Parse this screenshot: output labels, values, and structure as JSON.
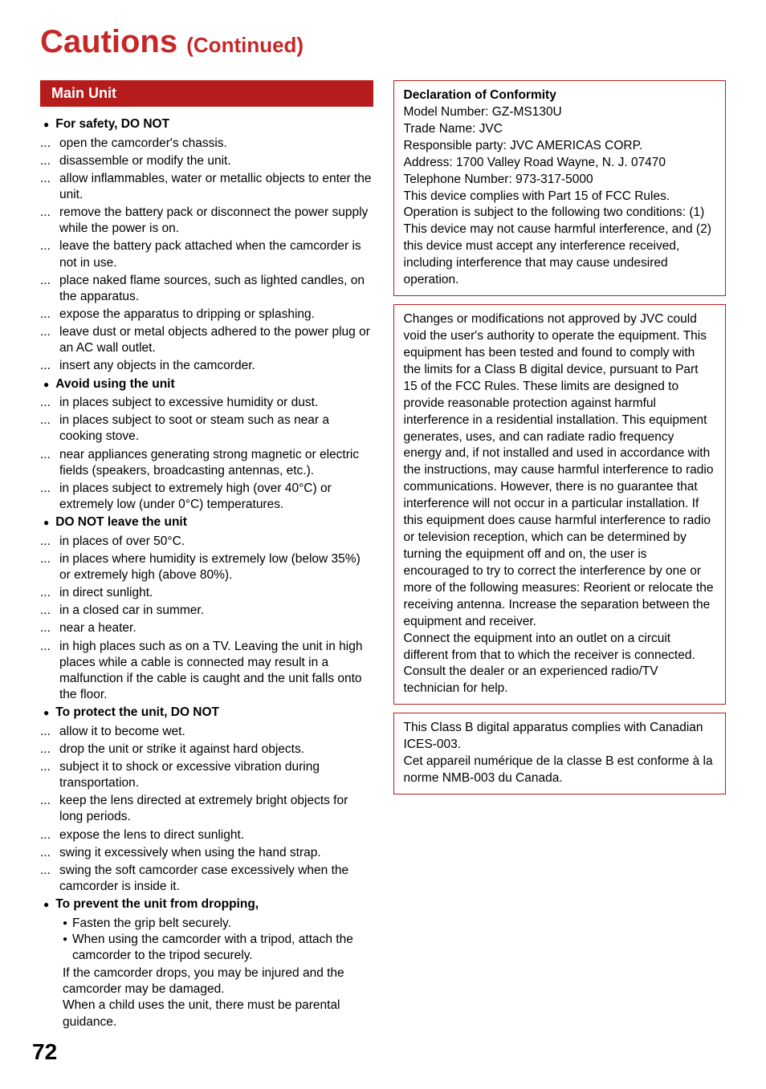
{
  "page": {
    "title": "Cautions",
    "continued": "(Continued)",
    "number": "72"
  },
  "left": {
    "header": "Main Unit",
    "sections": [
      {
        "heading": "For safety, DO NOT",
        "items": [
          "open the camcorder's chassis.",
          "disassemble or modify the unit.",
          "allow inflammables, water or metallic objects to enter the unit.",
          "remove the battery pack or disconnect the power supply while the power is on.",
          "leave the battery pack attached when the camcorder is not in use.",
          "place naked flame sources, such as lighted candles, on the apparatus.",
          "expose the apparatus to dripping or splashing.",
          "leave dust or metal objects adhered to the power plug or an AC wall outlet.",
          "insert any objects in the camcorder."
        ]
      },
      {
        "heading": "Avoid using the unit",
        "items": [
          "in places subject to excessive humidity or dust.",
          "in places subject to soot or steam such as near a cooking stove.",
          "near appliances generating strong magnetic or electric fields (speakers, broadcasting antennas, etc.).",
          "in places subject to extremely high (over 40°C) or extremely low (under 0°C) temperatures."
        ]
      },
      {
        "heading": "DO NOT leave the unit",
        "items": [
          "in places of over 50°C.",
          "in places where humidity is extremely low (below 35%) or extremely high (above 80%).",
          "in direct sunlight.",
          "in a closed car in summer.",
          "near a heater.",
          "in high places such as on a TV. Leaving the unit in high places while a cable is connected may result in a malfunction if the cable is caught and the unit falls onto the floor."
        ]
      },
      {
        "heading": "To protect the unit, DO NOT",
        "items": [
          "allow it to become wet.",
          "drop the unit or strike it against hard objects.",
          "subject it to shock or excessive vibration during transportation.",
          "keep the lens directed at extremely bright objects for long periods.",
          "expose the lens to direct sunlight.",
          "swing it excessively when using the hand strap.",
          "swing the soft camcorder case excessively when the camcorder is inside it."
        ]
      },
      {
        "heading": "To prevent the unit from dropping,",
        "subbullets": [
          "Fasten the grip belt securely.",
          "When using the camcorder with a tripod, attach the camcorder to the tripod securely."
        ],
        "tail": "If the camcorder drops, you may be injured and the camcorder may be damaged.\nWhen a child uses the unit, there must be parental guidance."
      }
    ]
  },
  "right": {
    "box1": {
      "title": "Declaration of Conformity",
      "lines": [
        "Model Number: GZ-MS130U",
        "Trade Name: JVC",
        "Responsible party: JVC AMERICAS CORP.",
        "Address: 1700 Valley Road Wayne, N. J. 07470",
        "Telephone Number: 973-317-5000",
        "This device complies with Part 15 of FCC Rules. Operation is subject to the following two conditions: (1) This device may not cause harmful interference, and (2) this device must accept any interference received, including interference that may cause undesired operation."
      ]
    },
    "box2": {
      "paras": [
        "Changes or modifications not approved by JVC could void the user's authority to operate the equipment. This equipment has been tested and found to comply with the limits for a Class B digital device, pursuant to Part 15 of the FCC Rules. These limits are designed to provide reasonable protection against harmful interference in a residential installation. This equipment generates, uses, and can radiate radio frequency energy and, if not installed and used in accordance with the instructions, may cause harmful interference to radio communications. However, there is no guarantee that interference will not occur in a particular installation. If this equipment does cause harmful interference to radio or television reception, which can be determined by turning the equipment off and on, the user is encouraged to try to correct the interference by one or more of the following measures: Reorient or relocate the receiving antenna. Increase the separation between the equipment and receiver.",
        "Connect the equipment into an outlet on a circuit different from that to which the receiver is connected.",
        "Consult the dealer or an experienced radio/TV technician for help."
      ]
    },
    "box3": {
      "paras": [
        "This Class B digital apparatus complies with Canadian ICES-003.",
        "Cet appareil numérique de la classe B est conforme à la norme NMB-003 du Canada."
      ]
    }
  }
}
